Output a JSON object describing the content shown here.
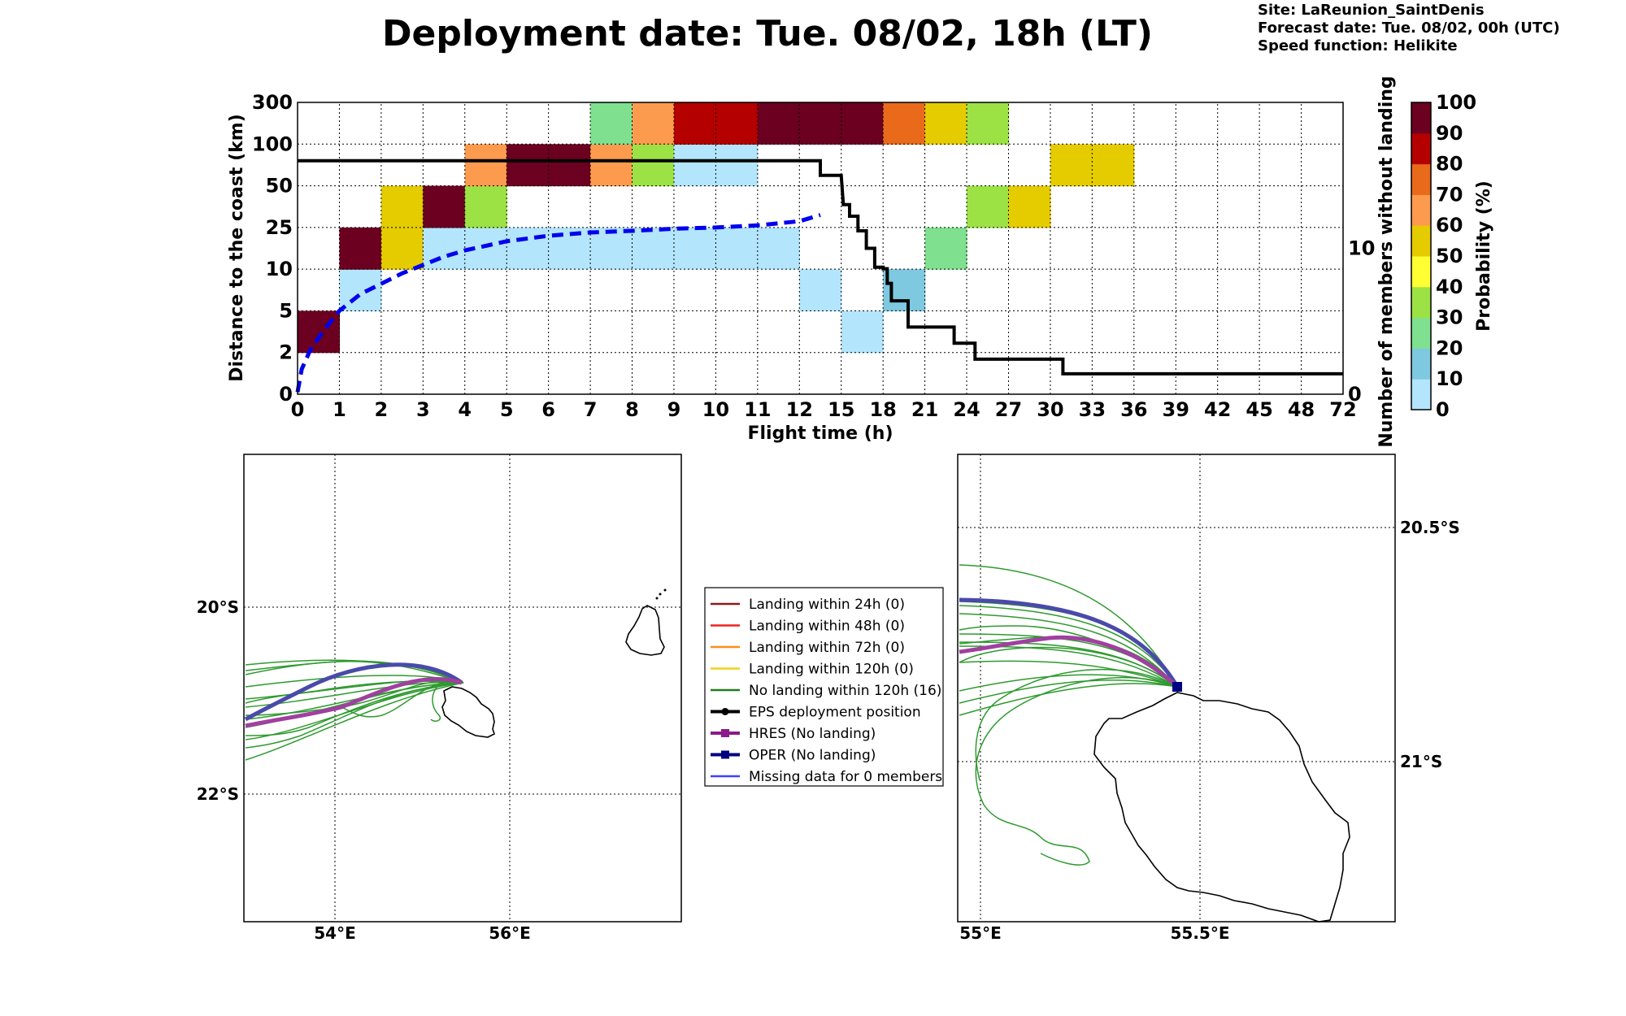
{
  "header": {
    "title": "Deployment date: Tue. 08/02, 18h (LT)",
    "site": "Site: LaReunion_SaintDenis",
    "forecast": "Forecast date: Tue. 08/02, 00h (UTC)",
    "speed": "Speed function: Helikite"
  },
  "chart_data": [
    {
      "type": "heatmap",
      "xlabel": "Flight time (h)",
      "ylabel": "Distance to the coast (km)",
      "y2label": "Number of members without landing",
      "x_ticks": [
        "0",
        "1",
        "2",
        "3",
        "4",
        "5",
        "6",
        "7",
        "8",
        "9",
        "10",
        "11",
        "12",
        "15",
        "18",
        "21",
        "24",
        "27",
        "30",
        "33",
        "36",
        "39",
        "42",
        "45",
        "48",
        "72"
      ],
      "y_ticks": [
        "0",
        "2",
        "5",
        "10",
        "25",
        "50",
        "100",
        "300"
      ],
      "y2_ticks": [
        "0",
        "10"
      ],
      "y2_range": [
        0,
        20
      ],
      "colorbar": {
        "label": "Probability (%)",
        "ticks": [
          "0",
          "10",
          "20",
          "30",
          "40",
          "50",
          "60",
          "70",
          "80",
          "90",
          "100"
        ],
        "colors": [
          "#b3e5fc",
          "#7ec8e0",
          "#7fe08f",
          "#9de245",
          "#ffff33",
          "#e5cc00",
          "#fc9b4e",
          "#e86a1a",
          "#b50000",
          "#6b0020"
        ]
      },
      "cells_note": "each cell: [x bin index, distance bin index, probability class 0-9]",
      "cells": [
        [
          0,
          1,
          9
        ],
        [
          1,
          2,
          0
        ],
        [
          1,
          3,
          9
        ],
        [
          2,
          3,
          5
        ],
        [
          2,
          4,
          5
        ],
        [
          3,
          3,
          0
        ],
        [
          3,
          4,
          9
        ],
        [
          4,
          3,
          0
        ],
        [
          4,
          4,
          3
        ],
        [
          4,
          5,
          6
        ],
        [
          5,
          3,
          0
        ],
        [
          5,
          5,
          9
        ],
        [
          6,
          3,
          0
        ],
        [
          6,
          5,
          9
        ],
        [
          7,
          3,
          0
        ],
        [
          7,
          5,
          6
        ],
        [
          7,
          6,
          2
        ],
        [
          8,
          3,
          0
        ],
        [
          8,
          5,
          3
        ],
        [
          8,
          6,
          6
        ],
        [
          9,
          3,
          0
        ],
        [
          9,
          5,
          0
        ],
        [
          9,
          6,
          8
        ],
        [
          10,
          3,
          0
        ],
        [
          10,
          5,
          0
        ],
        [
          10,
          6,
          8
        ],
        [
          11,
          3,
          0
        ],
        [
          11,
          6,
          9
        ],
        [
          12,
          2,
          0
        ],
        [
          12,
          6,
          9
        ],
        [
          13,
          1,
          0
        ],
        [
          13,
          6,
          9
        ],
        [
          14,
          2,
          1
        ],
        [
          14,
          6,
          7
        ],
        [
          15,
          3,
          2
        ],
        [
          15,
          6,
          5
        ],
        [
          16,
          4,
          3
        ],
        [
          16,
          6,
          3
        ],
        [
          17,
          4,
          5
        ],
        [
          18,
          5,
          5
        ],
        [
          19,
          5,
          5
        ]
      ],
      "series": [
        {
          "name": "mean distance",
          "style": "dashed",
          "color": "#0000ee",
          "points": [
            [
              0,
              0.05
            ],
            [
              0.1,
              0.6
            ],
            [
              0.3,
              1.05
            ],
            [
              0.6,
              1.5
            ],
            [
              1,
              2.0
            ],
            [
              1.5,
              2.4
            ],
            [
              2,
              2.65
            ],
            [
              2.5,
              2.9
            ],
            [
              3,
              3.1
            ],
            [
              3.5,
              3.3
            ],
            [
              4,
              3.45
            ],
            [
              5,
              3.67
            ],
            [
              6,
              3.8
            ],
            [
              7,
              3.88
            ],
            [
              8,
              3.92
            ],
            [
              9,
              3.97
            ],
            [
              10,
              4.0
            ],
            [
              11,
              4.05
            ],
            [
              12,
              4.15
            ],
            [
              12.5,
              4.3
            ]
          ]
        },
        {
          "name": "members without landing",
          "style": "step",
          "color": "#000000",
          "points": [
            [
              0,
              16
            ],
            [
              12.5,
              16
            ],
            [
              12.5,
              15
            ],
            [
              13,
              15
            ],
            [
              13.05,
              13
            ],
            [
              13.2,
              13
            ],
            [
              13.2,
              12.2
            ],
            [
              13.4,
              12.2
            ],
            [
              13.4,
              11.2
            ],
            [
              13.6,
              11.2
            ],
            [
              13.6,
              10
            ],
            [
              13.8,
              10
            ],
            [
              13.8,
              8.7
            ],
            [
              14,
              8.7
            ],
            [
              14,
              8.6
            ],
            [
              14.1,
              8.6
            ],
            [
              14.1,
              7.6
            ],
            [
              14.2,
              7.6
            ],
            [
              14.2,
              6.4
            ],
            [
              14.6,
              6.4
            ],
            [
              14.6,
              4.6
            ],
            [
              15.7,
              4.6
            ],
            [
              15.7,
              3.5
            ],
            [
              16.2,
              3.5
            ],
            [
              16.2,
              2.4
            ],
            [
              18.3,
              2.4
            ],
            [
              18.3,
              1.4
            ],
            [
              25,
              1.4
            ]
          ]
        }
      ]
    },
    {
      "type": "map",
      "lon_ticks": [
        "54°E",
        "56°E"
      ],
      "lat_ticks": [
        "20°S",
        "22°S"
      ],
      "legend": [
        {
          "label": "Landing within 24h (0)",
          "color": "#8b1a1a",
          "marker": "none"
        },
        {
          "label": "Landing within 48h (0)",
          "color": "#ee2222",
          "marker": "none"
        },
        {
          "label": "Landing within 72h (0)",
          "color": "#ff8c1a",
          "marker": "none"
        },
        {
          "label": "Landing within 120h (0)",
          "color": "#f0d21a",
          "marker": "none"
        },
        {
          "label": "No landing within 120h (16)",
          "color": "#1e7d1e",
          "marker": "none"
        },
        {
          "label": "EPS deployment position",
          "color": "#000000",
          "marker": "circle"
        },
        {
          "label": "HRES (No landing)",
          "color": "#8b1a8b",
          "marker": "square"
        },
        {
          "label": "OPER (No landing)",
          "color": "#000080",
          "marker": "square"
        },
        {
          "label": "Missing data for 0 members",
          "color": "#4040ff",
          "marker": "none"
        }
      ]
    },
    {
      "type": "map",
      "lon_ticks": [
        "55°E",
        "55.5°E"
      ],
      "lat_ticks": [
        "20.5°S",
        "21°S"
      ]
    }
  ]
}
